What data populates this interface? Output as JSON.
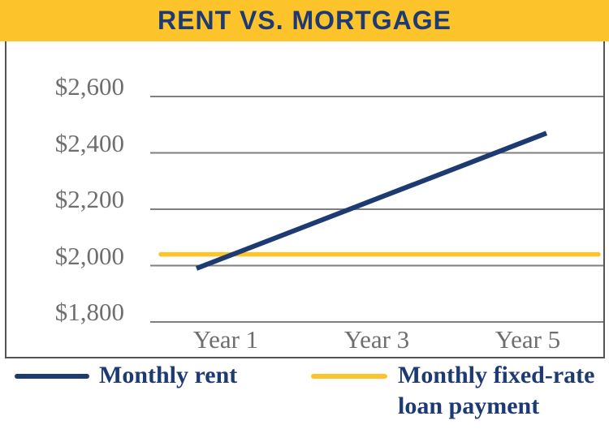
{
  "header": {
    "title": "RENT VS. MORTGAGE"
  },
  "colors": {
    "gold": "#FCC32A",
    "navy": "#1D3A73",
    "grid": "#7F7F7F",
    "axis_text": "#6E6E6E",
    "border": "#545454"
  },
  "chart_data": {
    "type": "line",
    "title": "RENT VS. MORTGAGE",
    "categories": [
      "Year 1",
      "Year 3",
      "Year 5"
    ],
    "series": [
      {
        "name": "Monthly rent",
        "color": "#1D3A73",
        "values": [
          1990,
          2230,
          2470
        ]
      },
      {
        "name": "Monthly fixed-rate loan payment",
        "color": "#FCC32A",
        "values": [
          2040,
          2040,
          2040
        ]
      }
    ],
    "ylim": [
      1800,
      2600
    ],
    "yticks": [
      {
        "value": 2600,
        "label": "$2,600"
      },
      {
        "value": 2400,
        "label": "$2,400"
      },
      {
        "value": 2200,
        "label": "$2,200"
      },
      {
        "value": 2000,
        "label": "$2,000"
      },
      {
        "value": 1800,
        "label": "$1,800"
      }
    ],
    "grid": "horizontal",
    "legend_position": "bottom"
  },
  "legend": {
    "items": [
      {
        "name": "Monthly rent",
        "lines": [
          "Monthly rent"
        ]
      },
      {
        "name": "Monthly fixed-rate loan payment",
        "lines": [
          "Monthly fixed-rate",
          "loan payment"
        ]
      }
    ]
  }
}
